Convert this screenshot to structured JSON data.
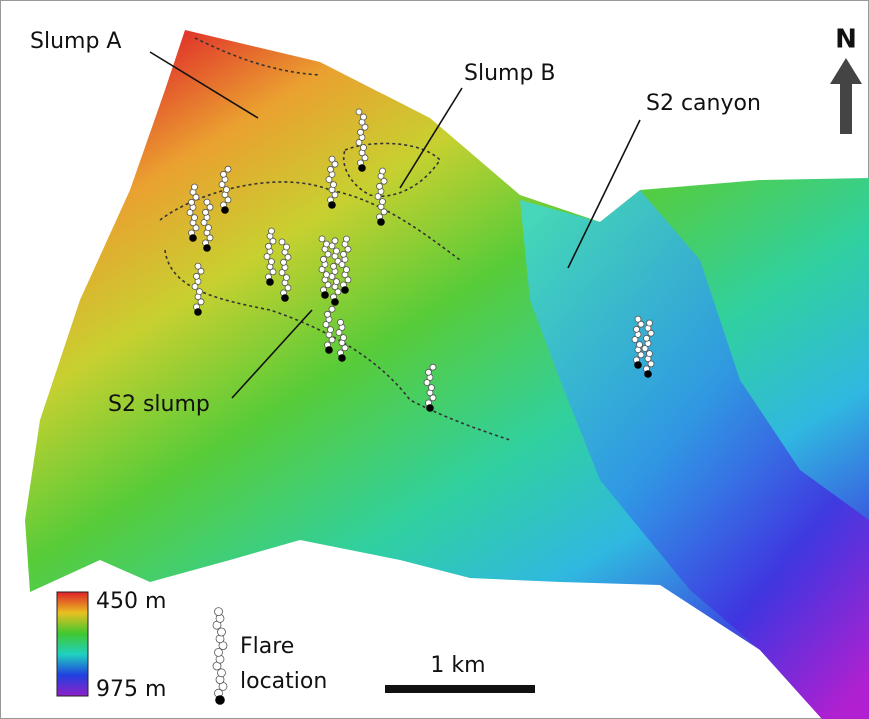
{
  "labels": {
    "slump_a": "Slump A",
    "slump_b": "Slump B",
    "s2_canyon": "S2 canyon",
    "s2_slump": "S2 slump",
    "north": "N"
  },
  "legend": {
    "depth_top": "450 m",
    "depth_bottom": "975 m",
    "flare": [
      "Flare",
      "location"
    ]
  },
  "scale_bar": "1 km"
}
